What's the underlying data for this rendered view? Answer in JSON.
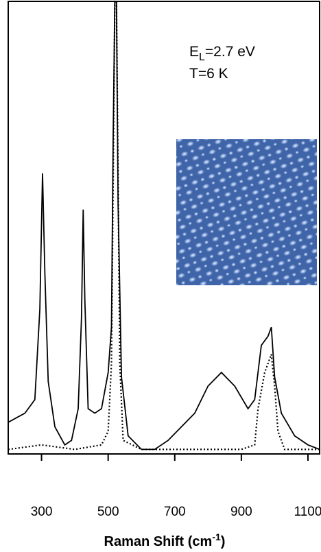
{
  "chart_data": {
    "type": "line",
    "annotations": [
      {
        "main": "E",
        "sub": "L",
        "rest": "=2.7 eV"
      },
      {
        "main": "T=6 K"
      }
    ],
    "x_label": {
      "main": "Raman Shift (cm",
      "sup": "-1",
      "rest": ")"
    },
    "xlim": [
      200,
      1135
    ],
    "xticks": [
      300,
      500,
      700,
      900,
      1100
    ],
    "ylim": [
      0,
      100
    ],
    "series": [
      {
        "style": "solid",
        "color": "#000000",
        "x": [
          200,
          250,
          280,
          295,
          303,
          310,
          320,
          340,
          370,
          390,
          410,
          420,
          425,
          430,
          440,
          460,
          480,
          500,
          510,
          515,
          520,
          525,
          530,
          540,
          560,
          600,
          640,
          680,
          720,
          760,
          800,
          840,
          880,
          920,
          940,
          960,
          980,
          990,
          1000,
          1020,
          1060,
          1100,
          1135
        ],
        "values": [
          7,
          9,
          12,
          32,
          62,
          40,
          16,
          6,
          2,
          3,
          10,
          30,
          54,
          34,
          10,
          9,
          10,
          18,
          28,
          70,
          100,
          100,
          55,
          17,
          4,
          1,
          1,
          3,
          6,
          9,
          15,
          18,
          15,
          10,
          12,
          24,
          26,
          28,
          17,
          9,
          4,
          2,
          1
        ]
      },
      {
        "style": "dotted",
        "color": "#000000",
        "x": [
          200,
          300,
          400,
          480,
          500,
          510,
          515,
          520,
          525,
          530,
          535,
          545,
          600,
          800,
          900,
          940,
          950,
          970,
          990,
          1000,
          1010,
          1030,
          1135
        ],
        "values": [
          1,
          2,
          1,
          2,
          5,
          20,
          60,
          100,
          100,
          60,
          20,
          3,
          1,
          1,
          1,
          2,
          10,
          18,
          22,
          15,
          5,
          1,
          1
        ]
      }
    ]
  }
}
